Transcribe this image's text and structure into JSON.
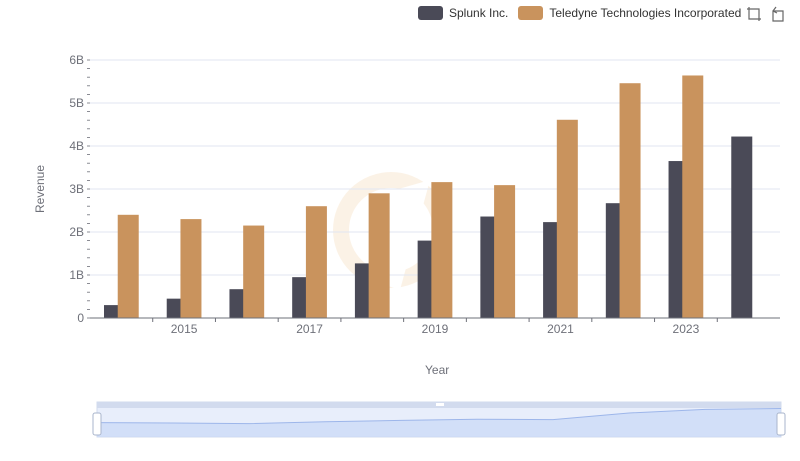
{
  "legend": {
    "items": [
      {
        "label": "Splunk Inc.",
        "color": "#4a4a57"
      },
      {
        "label": "Teledyne Technologies Incorporated",
        "color": "#c9935d"
      }
    ]
  },
  "toolbox": {
    "icons": [
      "zoom-select-icon",
      "zoom-reset-icon"
    ]
  },
  "chart_data": {
    "type": "bar",
    "title": "",
    "xlabel": "Year",
    "ylabel": "Revenue",
    "categories": [
      "2014",
      "2015",
      "2016",
      "2017",
      "2018",
      "2019",
      "2020",
      "2021",
      "2022",
      "2023",
      "2024"
    ],
    "x_tick_labels": [
      "2015",
      "2017",
      "2019",
      "2021",
      "2023"
    ],
    "y_tick_labels": [
      "0",
      "1B",
      "2B",
      "3B",
      "4B",
      "5B",
      "6B"
    ],
    "ylim": [
      0,
      6000000000
    ],
    "grid": true,
    "legend_position": "top-right",
    "series": [
      {
        "name": "Splunk Inc.",
        "color": "#4a4a57",
        "values": [
          300000000,
          450000000,
          670000000,
          950000000,
          1270000000,
          1800000000,
          2360000000,
          2230000000,
          2670000000,
          3650000000,
          4220000000
        ]
      },
      {
        "name": "Teledyne Technologies Incorporated",
        "color": "#c9935d",
        "values": [
          2400000000,
          2300000000,
          2150000000,
          2600000000,
          2900000000,
          3160000000,
          3090000000,
          4610000000,
          5460000000,
          5640000000,
          null
        ]
      }
    ],
    "data_zoom": {
      "start": 0,
      "end": 100
    }
  }
}
